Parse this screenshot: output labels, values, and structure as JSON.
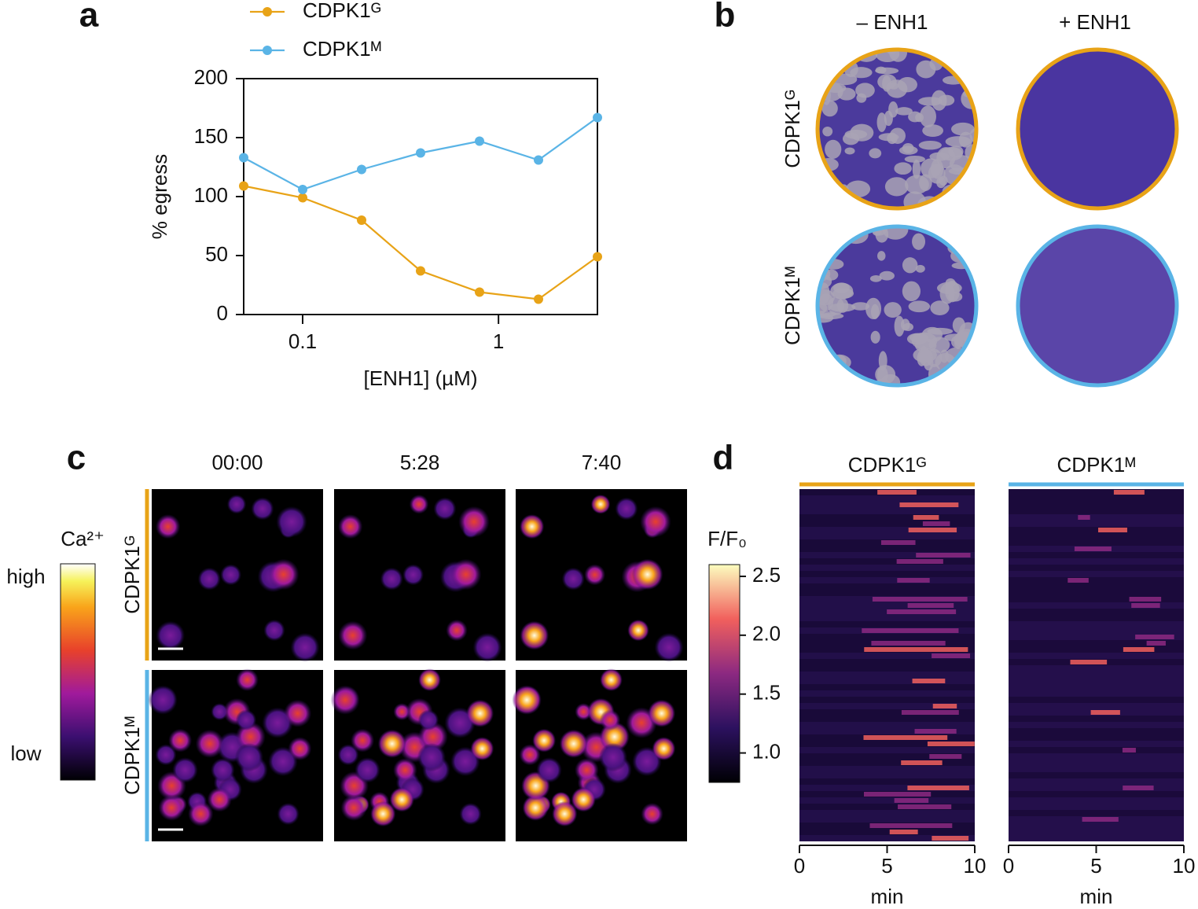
{
  "panel_labels": [
    "a",
    "b",
    "c",
    "d"
  ],
  "plates": {
    "columns": [
      "– ENH1",
      "+ ENH1"
    ],
    "rows": [
      {
        "label": "CDPK1ᴳ",
        "color": "#e8a317"
      },
      {
        "label": "CDPK1ᴹ",
        "color": "#5ab4e6"
      }
    ]
  },
  "imaging": {
    "times": [
      "00:00",
      "5:28",
      "7:40"
    ],
    "rows": [
      {
        "label": "CDPK1ᴳ",
        "color": "#e8a317"
      },
      {
        "label": "CDPK1ᴹ",
        "color": "#5ab4e6"
      }
    ],
    "colorbar_title": "Ca²⁺",
    "high": "high",
    "low": "low"
  },
  "chart_data": [
    {
      "type": "line",
      "xlabel": "[ENH1] (µM)",
      "ylabel": "% egress",
      "x": [
        0.05,
        0.1,
        0.2,
        0.4,
        0.8,
        1.6,
        3.2
      ],
      "xlog": true,
      "xlim": [
        0.05,
        3.2
      ],
      "xticks": [
        0.1,
        1
      ],
      "ylim": [
        0,
        200
      ],
      "yticks": [
        0,
        50,
        100,
        150,
        200
      ],
      "series": [
        {
          "name": "CDPK1ᴳ",
          "color": "#e8a317",
          "values": [
            109,
            99,
            80,
            37,
            19,
            13,
            49
          ],
          "errors": [
            2,
            3,
            2,
            2,
            2,
            2,
            2
          ]
        },
        {
          "name": "CDPK1ᴹ",
          "color": "#5ab4e6",
          "values": [
            133,
            106,
            123,
            137,
            147,
            131,
            167
          ],
          "errors": [
            3,
            4,
            4,
            2,
            3,
            3,
            4
          ]
        }
      ]
    },
    {
      "type": "heatmap",
      "panels": [
        {
          "title": "CDPK1ᴳ",
          "color": "#e8a317"
        },
        {
          "title": "CDPK1ᴹ",
          "color": "#5ab4e6"
        }
      ],
      "xlabel": "min",
      "xlim": [
        0,
        10
      ],
      "xticks": [
        0,
        5,
        10
      ],
      "colorbar_title": "F/F₀",
      "clim": [
        0.75,
        2.6
      ],
      "cticks": [
        {
          "value": 1,
          "label": "1.0"
        },
        {
          "value": 1.5,
          "label": "1.5"
        },
        {
          "value": 2,
          "label": "2.0"
        },
        {
          "value": 2.5,
          "label": "2.5"
        }
      ]
    }
  ]
}
